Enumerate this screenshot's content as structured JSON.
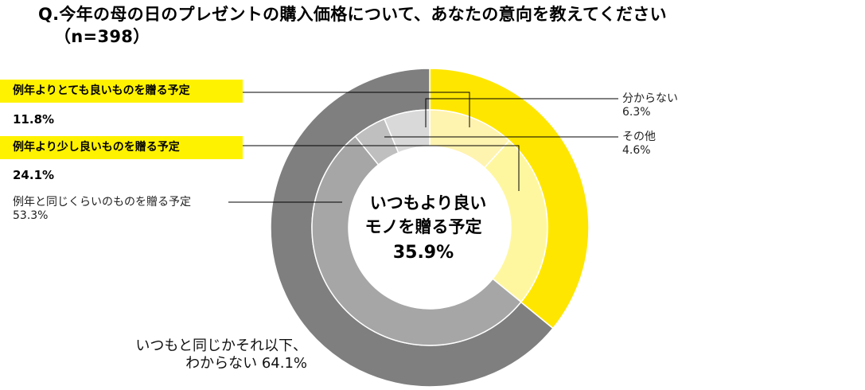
{
  "title": {
    "line1": "Q.今年の母の日のプレゼントの購入価格について、あなたの意向を教えてください",
    "line2": "（n=398）"
  },
  "center": {
    "line1": "いつもより良い",
    "line2": "モノを贈る予定",
    "value": "35.9%"
  },
  "outer_note": {
    "line1": "いつもと同じかそれ以下、",
    "line2": "わからない 64.1%"
  },
  "labels": {
    "much_better": {
      "label": "例年よりとても良いものを贈る予定",
      "value": "11.8%"
    },
    "slightly_better": {
      "label": "例年より少し良いものを贈る予定",
      "value": "24.1%"
    },
    "same": {
      "label": "例年と同じくらいのものを贈る予定",
      "value": "53.3%"
    },
    "unknown": {
      "label": "分からない",
      "value": "6.3%"
    },
    "other": {
      "label": "その他",
      "value": "4.6%"
    }
  },
  "colors": {
    "yellow_dark": "#ffe600",
    "yellow_light": "#fff7a0",
    "yellow_lighter": "#fff3b0",
    "gray_dark": "#7f7f7f",
    "gray_mid": "#a6a6a6",
    "gray_light": "#bfbfbf",
    "gray_lighter": "#d9d9d9",
    "highlight": "#fff200"
  },
  "chart_data": [
    {
      "type": "pie",
      "ring": "outer",
      "categories": [
        "いつもより良いモノを贈る予定",
        "いつもと同じかそれ以下、わからない"
      ],
      "values": [
        35.9,
        64.1
      ]
    },
    {
      "type": "pie",
      "ring": "inner",
      "categories": [
        "例年よりとても良いものを贈る予定",
        "例年より少し良いものを贈る予定",
        "例年と同じくらいのものを贈る予定",
        "その他",
        "分からない"
      ],
      "values": [
        11.8,
        24.1,
        53.3,
        4.6,
        6.3
      ]
    }
  ]
}
